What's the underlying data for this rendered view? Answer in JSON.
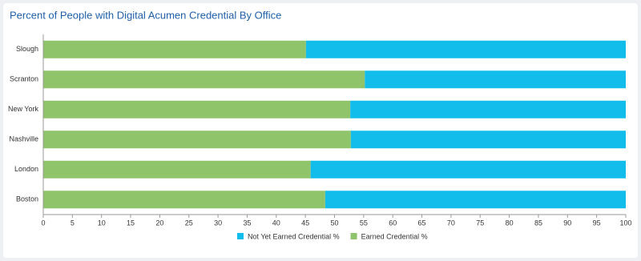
{
  "chart_data": {
    "type": "stacked-barh",
    "title": "Percent of People with Digital Acumen Credential By Office",
    "categories": [
      "Slough",
      "Scranton",
      "New York",
      "Nashville",
      "London",
      "Boston"
    ],
    "series": [
      {
        "name": "Not Yet Earned Credential %",
        "color": "#13bdeb",
        "values": [
          54.9,
          44.8,
          47.3,
          47.2,
          54.1,
          51.6
        ]
      },
      {
        "name": "Earned Credential %",
        "color": "#8fc46a",
        "values": [
          45.1,
          55.2,
          52.7,
          52.8,
          45.9,
          48.4
        ]
      }
    ],
    "xlim": [
      0,
      100
    ],
    "xticks": [
      0,
      5,
      10,
      15,
      20,
      25,
      30,
      35,
      40,
      45,
      50,
      55,
      60,
      65,
      70,
      75,
      80,
      85,
      90,
      95,
      100
    ],
    "grid": false,
    "legend": "bottom"
  }
}
